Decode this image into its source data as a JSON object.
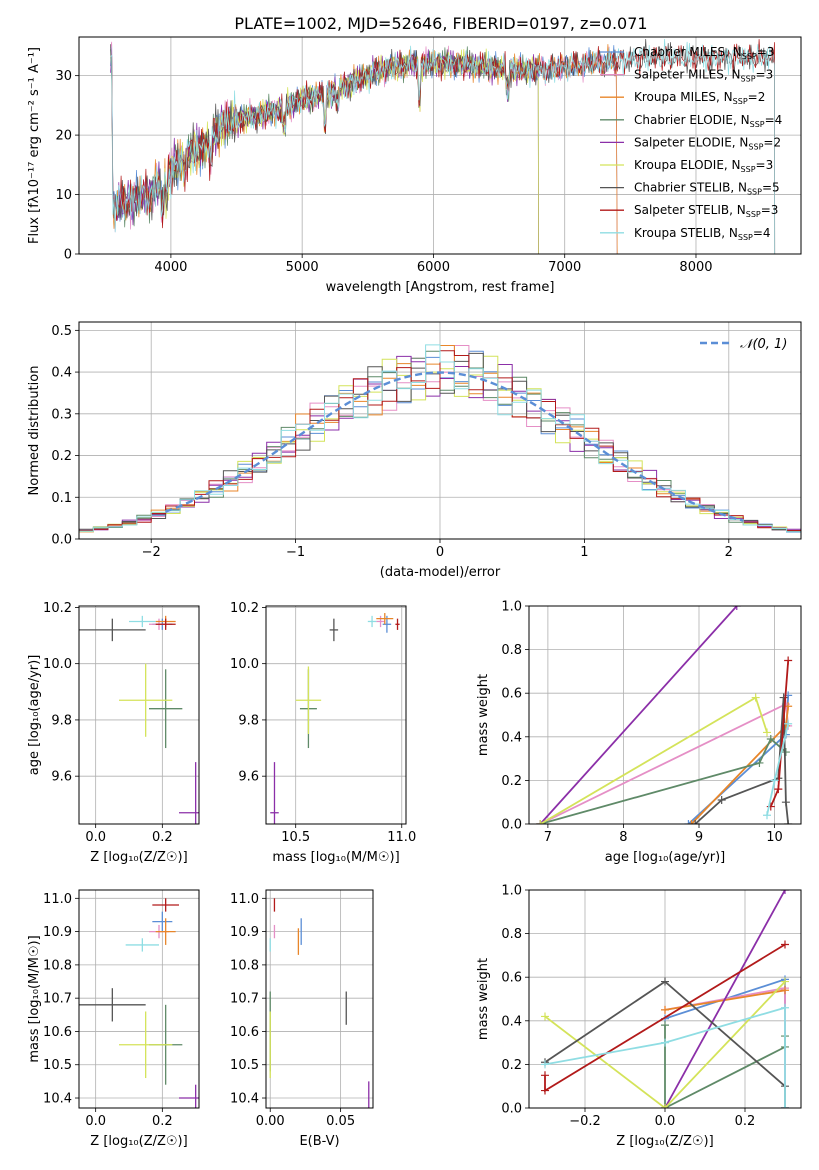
{
  "figure_title": "PLATE=1002, MJD=52646, FIBERID=0197, z=0.071",
  "palette": {
    "Chabrier MILES": "#5b8ed6",
    "Salpeter MILES": "#e58fc6",
    "Kroupa MILES": "#e8862a",
    "Chabrier ELODIE": "#5f8a68",
    "Salpeter ELODIE": "#8b2fa8",
    "Kroupa ELODIE": "#d4e35a",
    "Chabrier STELIB": "#555555",
    "Salpeter STELIB": "#b21a1a",
    "Kroupa STELIB": "#8fdde3"
  },
  "chart_data": [
    {
      "type": "line",
      "id": "spectrum",
      "xlabel": "wavelength [Angstrom, rest frame]",
      "ylabel": "Flux [fλ10⁻¹⁷ erg cm⁻² s⁻¹ A⁻¹]",
      "xlim": [
        3300,
        8800
      ],
      "ylim": [
        0,
        36.5
      ],
      "xticks": [
        4000,
        5000,
        6000,
        7000,
        8000
      ],
      "yticks": [
        0,
        10,
        20,
        30
      ],
      "legend_position": "top-right",
      "series": [
        {
          "name": "Chabrier MILES, N_SSP=3"
        },
        {
          "name": "Salpeter MILES, N_SSP=3"
        },
        {
          "name": "Kroupa MILES, N_SSP=2"
        },
        {
          "name": "Chabrier ELODIE, N_SSP=4"
        },
        {
          "name": "Salpeter ELODIE, N_SSP=2"
        },
        {
          "name": "Kroupa ELODIE, N_SSP=3"
        },
        {
          "name": "Chabrier STELIB, N_SSP=5"
        },
        {
          "name": "Salpeter STELIB, N_SSP=3"
        },
        {
          "name": "Kroupa STELIB, N_SSP=4"
        }
      ],
      "continuum": {
        "x": [
          3550,
          3700,
          3850,
          3950,
          4050,
          4150,
          4250,
          4400,
          4600,
          4800,
          5000,
          5200,
          5400,
          5600,
          5800,
          6000,
          6200,
          6400,
          6600,
          6800,
          7000,
          7200,
          7400,
          7600,
          7800,
          8000,
          8200,
          8400,
          8600
        ],
        "y": [
          8,
          9,
          10,
          13,
          15,
          17,
          18,
          22,
          23,
          24,
          26,
          27,
          29,
          31,
          32,
          32,
          32,
          31.5,
          31,
          31,
          31.5,
          32,
          32.5,
          33,
          33,
          33,
          33,
          33,
          33
        ]
      },
      "data_range": {
        "Chabrier MILES": [
          3540,
          7400
        ],
        "Salpeter MILES": [
          3540,
          7400
        ],
        "Kroupa MILES": [
          3540,
          7400
        ],
        "Chabrier ELODIE": [
          3540,
          6800
        ],
        "Salpeter ELODIE": [
          3540,
          6800
        ],
        "Kroupa ELODIE": [
          3900,
          6800
        ],
        "Chabrier STELIB": [
          3540,
          8600
        ],
        "Salpeter STELIB": [
          3540,
          8600
        ],
        "Kroupa STELIB": [
          3540,
          8600
        ]
      }
    },
    {
      "type": "histogram",
      "id": "residuals",
      "xlabel": "(data-model)/error",
      "ylabel": "Normed distribution",
      "xlim": [
        -2.5,
        2.5
      ],
      "ylim": [
        0,
        0.52
      ],
      "xticks": [
        -2,
        -1,
        0,
        1,
        2
      ],
      "yticks": [
        0.0,
        0.1,
        0.2,
        0.3,
        0.4,
        0.5
      ],
      "bin_edges_start": -2.5,
      "bin_width": 0.1,
      "n_bins": 50,
      "legend": [
        {
          "name": "𝒩(0, 1)",
          "style": "dashed"
        }
      ],
      "gaussian": {
        "mean": 0,
        "sigma": 1,
        "x_range": [
          -1.9,
          2.1
        ]
      }
    },
    {
      "type": "scatter",
      "id": "age_vs_Z",
      "xlabel": "Z [log₁₀(Z/Z☉)]",
      "ylabel": "age  [log₁₀(age/yr)]",
      "xlim": [
        -0.05,
        0.31
      ],
      "ylim": [
        9.43,
        10.205
      ],
      "xticks": [
        0.0,
        0.2
      ],
      "yticks": [
        9.6,
        9.8,
        10.0,
        10.2
      ],
      "points": [
        {
          "model": "Chabrier MILES",
          "x": 0.2,
          "y": 10.14,
          "ex": 0.03,
          "ey": 0.02
        },
        {
          "model": "Salpeter MILES",
          "x": 0.19,
          "y": 10.14,
          "ex": 0.03,
          "ey": 0.02
        },
        {
          "model": "Kroupa MILES",
          "x": 0.21,
          "y": 10.15,
          "ex": 0.03,
          "ey": 0.02
        },
        {
          "model": "Chabrier ELODIE",
          "x": 0.21,
          "y": 9.84,
          "ex": 0.05,
          "ey": 0.14
        },
        {
          "model": "Salpeter ELODIE",
          "x": 0.3,
          "y": 9.47,
          "ex": 0.05,
          "ey": 0.18
        },
        {
          "model": "Kroupa ELODIE",
          "x": 0.15,
          "y": 9.87,
          "ex": 0.08,
          "ey": 0.13
        },
        {
          "model": "Chabrier STELIB",
          "x": 0.05,
          "y": 10.12,
          "ex": 0.1,
          "ey": 0.04
        },
        {
          "model": "Salpeter STELIB",
          "x": 0.21,
          "y": 10.14,
          "ex": 0.03,
          "ey": 0.02
        },
        {
          "model": "Kroupa STELIB",
          "x": 0.14,
          "y": 10.15,
          "ex": 0.04,
          "ey": 0.02
        }
      ]
    },
    {
      "type": "scatter",
      "id": "age_vs_mass",
      "xlabel": "mass [log₁₀(M/M☉)]",
      "ylabel": "",
      "xlim": [
        10.36,
        11.02
      ],
      "ylim": [
        9.43,
        10.205
      ],
      "xticks": [
        10.5,
        11.0
      ],
      "yticks": [
        9.6,
        9.8,
        10.0,
        10.2
      ],
      "points": [
        {
          "model": "Chabrier MILES",
          "x": 10.93,
          "y": 10.14,
          "ex": 0.02,
          "ey": 0.03
        },
        {
          "model": "Salpeter MILES",
          "x": 10.9,
          "y": 10.15,
          "ex": 0.02,
          "ey": 0.02
        },
        {
          "model": "Kroupa MILES",
          "x": 10.92,
          "y": 10.16,
          "ex": 0.04,
          "ey": 0.02
        },
        {
          "model": "Chabrier ELODIE",
          "x": 10.56,
          "y": 9.84,
          "ex": 0.04,
          "ey": 0.14
        },
        {
          "model": "Salpeter ELODIE",
          "x": 10.4,
          "y": 9.47,
          "ex": 0.02,
          "ey": 0.18
        },
        {
          "model": "Kroupa ELODIE",
          "x": 10.56,
          "y": 9.87,
          "ex": 0.06,
          "ey": 0.12
        },
        {
          "model": "Chabrier STELIB",
          "x": 10.68,
          "y": 10.12,
          "ex": 0.02,
          "ey": 0.04
        },
        {
          "model": "Salpeter STELIB",
          "x": 10.98,
          "y": 10.14,
          "ex": 0.01,
          "ey": 0.02
        },
        {
          "model": "Kroupa STELIB",
          "x": 10.86,
          "y": 10.15,
          "ex": 0.02,
          "ey": 0.02
        }
      ]
    },
    {
      "type": "line",
      "id": "mass_weight_vs_age",
      "xlabel": "age  [log₁₀(age/yr)]",
      "ylabel": "mass weight",
      "xlim": [
        6.75,
        10.35
      ],
      "ylim": [
        0,
        1.0
      ],
      "xticks": [
        7,
        8,
        9,
        10
      ],
      "yticks": [
        0.0,
        0.2,
        0.4,
        0.6,
        0.8,
        1.0
      ],
      "series": [
        {
          "model": "Chabrier MILES",
          "x": [
            8.86,
            10.15,
            10.18
          ],
          "y": [
            0.0,
            0.41,
            0.59
          ]
        },
        {
          "model": "Salpeter MILES",
          "x": [
            6.9,
            10.15,
            10.18
          ],
          "y": [
            0.0,
            0.55,
            0.45
          ]
        },
        {
          "model": "Kroupa MILES",
          "x": [
            8.9,
            10.15,
            10.18
          ],
          "y": [
            0.0,
            0.45,
            0.54
          ]
        },
        {
          "model": "Chabrier ELODIE",
          "x": [
            6.9,
            9.8,
            9.95,
            10.15
          ],
          "y": [
            0.0,
            0.28,
            0.39,
            0.33
          ]
        },
        {
          "model": "Salpeter ELODIE",
          "x": [
            6.9,
            9.5
          ],
          "y": [
            0.0,
            1.0
          ]
        },
        {
          "model": "Kroupa ELODIE",
          "x": [
            6.9,
            9.75,
            9.9
          ],
          "y": [
            0.0,
            0.58,
            0.42
          ]
        },
        {
          "model": "Chabrier STELIB",
          "x": [
            8.95,
            9.3,
            10.05,
            10.12,
            10.15,
            10.18
          ],
          "y": [
            0.0,
            0.11,
            0.21,
            0.58,
            0.1,
            0.0
          ]
        },
        {
          "model": "Salpeter STELIB",
          "x": [
            9.95,
            10.05,
            10.18
          ],
          "y": [
            0.08,
            0.16,
            0.75
          ]
        },
        {
          "model": "Kroupa STELIB",
          "x": [
            9.9,
            10.0,
            10.18
          ],
          "y": [
            0.04,
            0.2,
            0.46
          ]
        }
      ]
    },
    {
      "type": "scatter",
      "id": "mass_vs_Z",
      "xlabel": "Z [log₁₀(Z/Z☉)]",
      "ylabel": "mass [log₁₀(M/M☉)]",
      "xlim": [
        -0.05,
        0.31
      ],
      "ylim": [
        10.37,
        11.025
      ],
      "xticks": [
        0.0,
        0.2
      ],
      "yticks": [
        10.4,
        10.5,
        10.6,
        10.7,
        10.8,
        10.9,
        11.0
      ],
      "points": [
        {
          "model": "Chabrier MILES",
          "x": 0.2,
          "y": 10.93,
          "ex": 0.03,
          "ey": 0.03
        },
        {
          "model": "Salpeter MILES",
          "x": 0.19,
          "y": 10.9,
          "ex": 0.03,
          "ey": 0.02
        },
        {
          "model": "Kroupa MILES",
          "x": 0.21,
          "y": 10.9,
          "ex": 0.03,
          "ey": 0.04
        },
        {
          "model": "Chabrier ELODIE",
          "x": 0.21,
          "y": 10.56,
          "ex": 0.05,
          "ey": 0.12
        },
        {
          "model": "Salpeter ELODIE",
          "x": 0.3,
          "y": 10.4,
          "ex": 0.05,
          "ey": 0.04
        },
        {
          "model": "Kroupa ELODIE",
          "x": 0.15,
          "y": 10.56,
          "ex": 0.08,
          "ey": 0.1
        },
        {
          "model": "Chabrier STELIB",
          "x": 0.05,
          "y": 10.68,
          "ex": 0.1,
          "ey": 0.05
        },
        {
          "model": "Salpeter STELIB",
          "x": 0.21,
          "y": 10.98,
          "ex": 0.04,
          "ey": 0.02
        },
        {
          "model": "Kroupa STELIB",
          "x": 0.14,
          "y": 10.86,
          "ex": 0.05,
          "ey": 0.02
        }
      ]
    },
    {
      "type": "scatter",
      "id": "mass_vs_EBV",
      "xlabel": "E(B-V)",
      "ylabel": "",
      "xlim": [
        -0.003,
        0.073
      ],
      "ylim": [
        10.37,
        11.025
      ],
      "xticks": [
        0.0,
        0.05
      ],
      "yticks": [
        10.4,
        10.5,
        10.6,
        10.7,
        10.8,
        10.9,
        11.0
      ],
      "points": [
        {
          "model": "Chabrier MILES",
          "x": 0.022,
          "y": 10.9,
          "ex": 0.0,
          "ey": 0.04
        },
        {
          "model": "Salpeter MILES",
          "x": 0.003,
          "y": 10.9,
          "ex": 0.0,
          "ey": 0.02
        },
        {
          "model": "Kroupa MILES",
          "x": 0.02,
          "y": 10.87,
          "ex": 0.0,
          "ey": 0.04
        },
        {
          "model": "Chabrier ELODIE",
          "x": 0.0,
          "y": 10.6,
          "ex": 0.0,
          "ey": 0.12
        },
        {
          "model": "Salpeter ELODIE",
          "x": 0.07,
          "y": 10.41,
          "ex": 0.0,
          "ey": 0.04
        },
        {
          "model": "Kroupa ELODIE",
          "x": 0.0,
          "y": 10.56,
          "ex": 0.0,
          "ey": 0.1
        },
        {
          "model": "Chabrier STELIB",
          "x": 0.054,
          "y": 10.67,
          "ex": 0.0,
          "ey": 0.05
        },
        {
          "model": "Salpeter STELIB",
          "x": 0.003,
          "y": 10.98,
          "ex": 0.0,
          "ey": 0.02
        },
        {
          "model": "Kroupa STELIB",
          "x": 0.0,
          "y": 10.86,
          "ex": 0.0,
          "ey": 0.02
        }
      ]
    },
    {
      "type": "line",
      "id": "mass_weight_vs_Z",
      "xlabel": "Z [log₁₀(Z/Z☉)]",
      "ylabel": "mass weight",
      "xlim": [
        -0.34,
        0.34
      ],
      "ylim": [
        0,
        1.0
      ],
      "xticks": [
        -0.2,
        0.0,
        0.2
      ],
      "yticks": [
        0.0,
        0.2,
        0.4,
        0.6,
        0.8,
        1.0
      ],
      "series": [
        {
          "model": "Chabrier MILES",
          "x": [
            0.0,
            0.3,
            0.3
          ],
          "y": [
            0.41,
            0.59,
            0.0
          ]
        },
        {
          "model": "Salpeter MILES",
          "x": [
            0.0,
            0.3,
            0.3
          ],
          "y": [
            0.45,
            0.55,
            0.0
          ]
        },
        {
          "model": "Kroupa MILES",
          "x": [
            0.0,
            0.3
          ],
          "y": [
            0.45,
            0.54
          ]
        },
        {
          "model": "Chabrier ELODIE",
          "x": [
            0.0,
            0.0,
            0.3,
            0.3
          ],
          "y": [
            0.38,
            0.0,
            0.28,
            0.33
          ]
        },
        {
          "model": "Salpeter ELODIE",
          "x": [
            0.0,
            0.3
          ],
          "y": [
            0.0,
            1.0
          ]
        },
        {
          "model": "Kroupa ELODIE",
          "x": [
            -0.3,
            0.0,
            0.3
          ],
          "y": [
            0.42,
            0.0,
            0.58
          ]
        },
        {
          "model": "Chabrier STELIB",
          "x": [
            -0.3,
            0.0,
            0.3,
            0.3
          ],
          "y": [
            0.21,
            0.58,
            0.1,
            0.0
          ]
        },
        {
          "model": "Salpeter STELIB",
          "x": [
            -0.3,
            -0.3,
            0.3
          ],
          "y": [
            0.15,
            0.08,
            0.75
          ]
        },
        {
          "model": "Kroupa STELIB",
          "x": [
            -0.3,
            0.0,
            0.3,
            0.3
          ],
          "y": [
            0.2,
            0.3,
            0.46,
            0.0
          ]
        }
      ]
    }
  ]
}
